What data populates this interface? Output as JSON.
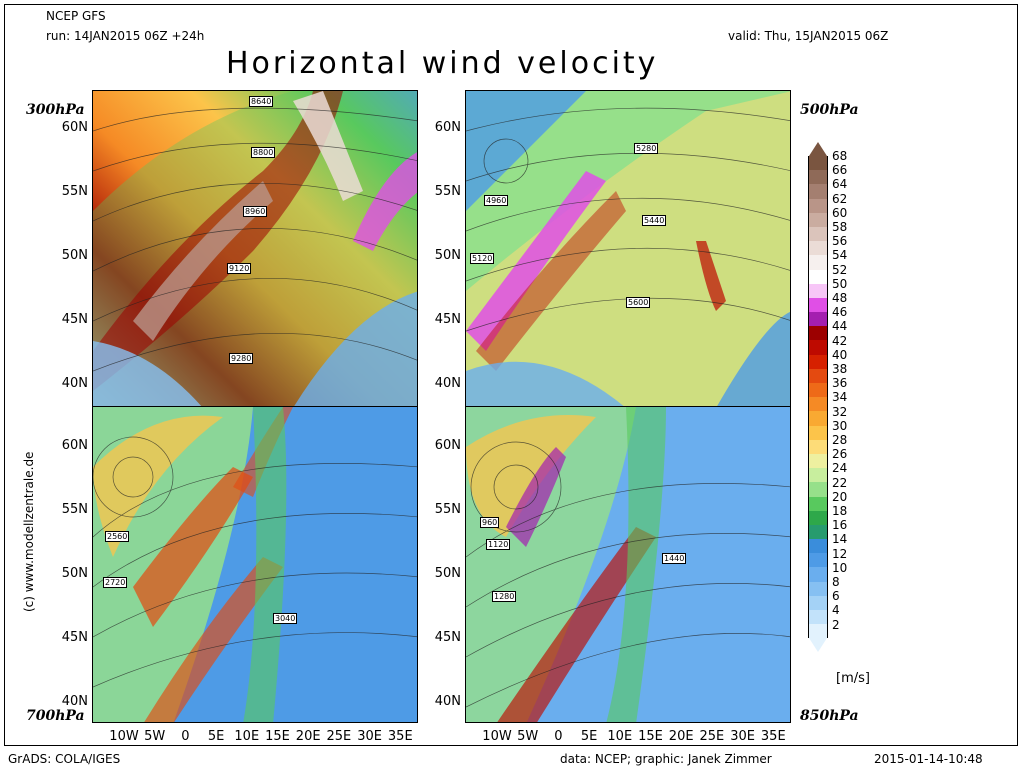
{
  "header": {
    "model": "NCEP GFS",
    "run": "run: 14JAN2015 06Z +24h",
    "valid": "valid: Thu, 15JAN2015 06Z",
    "title": "Horizontal wind velocity"
  },
  "levels": [
    "300hPa",
    "500hPa",
    "700hPa",
    "850hPa"
  ],
  "lat_labels": [
    "60N",
    "55N",
    "50N",
    "45N",
    "40N"
  ],
  "lon_labels": [
    "10W",
    "5W",
    "0",
    "5E",
    "10E",
    "15E",
    "20E",
    "25E",
    "30E",
    "35E"
  ],
  "contour_labels": {
    "p300": [
      "8640",
      "8800",
      "8960",
      "9120",
      "9280"
    ],
    "p500": [
      "5280",
      "4960",
      "5440",
      "5120",
      "5600"
    ],
    "p700": [
      "2560",
      "2720",
      "3040"
    ],
    "p850": [
      "960",
      "1120",
      "1440",
      "1280"
    ]
  },
  "colorbar": {
    "values": [
      "68",
      "66",
      "64",
      "62",
      "60",
      "58",
      "56",
      "54",
      "52",
      "50",
      "48",
      "46",
      "44",
      "42",
      "40",
      "38",
      "36",
      "34",
      "32",
      "30",
      "28",
      "26",
      "24",
      "22",
      "20",
      "18",
      "16",
      "14",
      "12",
      "10",
      "8",
      "6",
      "4",
      "2"
    ],
    "colors": [
      "#7a5540",
      "#8f6a58",
      "#a47f70",
      "#b99588",
      "#caaca0",
      "#dbc4bb",
      "#ebdcd6",
      "#f6f0ee",
      "#ffffff",
      "#f7c6f7",
      "#e04fe6",
      "#a41fb0",
      "#9c0000",
      "#be0a00",
      "#d62100",
      "#e44a10",
      "#ee6a18",
      "#f58a25",
      "#f9a932",
      "#fcc44a",
      "#fddc78",
      "#eef0a0",
      "#c8ee9e",
      "#96e08a",
      "#58c95e",
      "#2ea84a",
      "#279b6e",
      "#3a8ddb",
      "#4e9be6",
      "#6aaeee",
      "#86c0f2",
      "#a4d2f6",
      "#c2e2fa",
      "#e2f2fd"
    ],
    "unit": "[m/s]"
  },
  "footer": {
    "left": "GrADS: COLA/IGES",
    "center": "data: NCEP; graphic: Janek Zimmer",
    "right": "2015-01-14-10:48"
  },
  "side_credit": "(c) www.modellzentrale.de"
}
